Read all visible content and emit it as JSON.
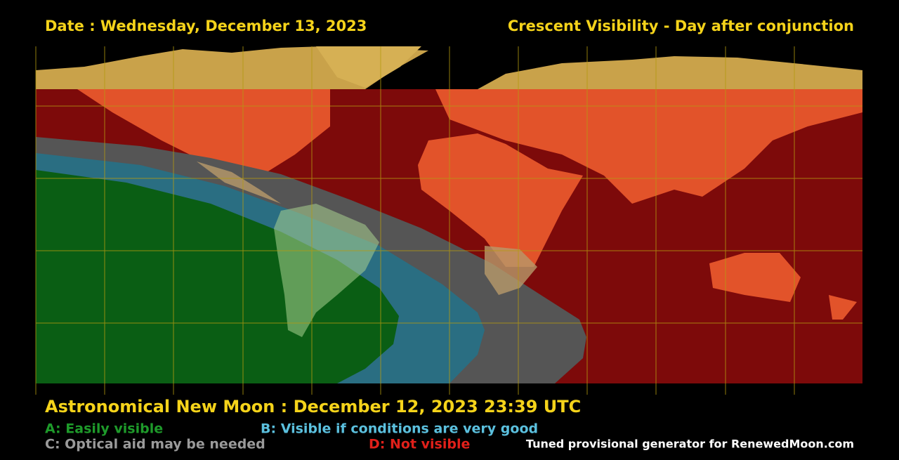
{
  "header": {
    "date": "Date : Wednesday, December 13, 2023",
    "title": "Crescent Visibility - Day after conjunction"
  },
  "footer": {
    "new_moon": "Astronomical New Moon : December 12, 2023 23:39 UTC",
    "legend": [
      {
        "label": "A: Easily visible"
      },
      {
        "label": "B: Visible if conditions are very good"
      },
      {
        "label": "C: Optical aid may be needed"
      },
      {
        "label": "D: Not visible"
      }
    ],
    "credit": "Tuned provisional generator for RenewedMoon.com"
  }
}
